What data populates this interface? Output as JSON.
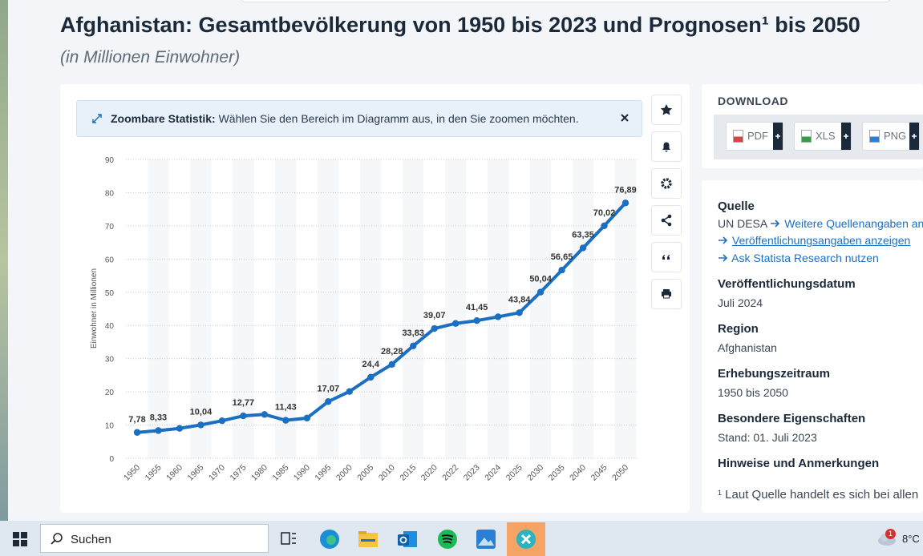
{
  "header": {
    "title": "Afghanistan: Gesamtbevölkerung von 1950 bis 2023 und Prognosen¹ bis 2050",
    "subtitle": "(in Millionen Einwohner)"
  },
  "banner": {
    "label": "Zoombare Statistik:",
    "text": "Wählen Sie den Bereich im Diagramm aus, in den Sie zoomen möchten."
  },
  "chart_data": {
    "type": "line",
    "categories": [
      "1950",
      "1955",
      "1960",
      "1965",
      "1970",
      "1975",
      "1980",
      "1985",
      "1990",
      "1995",
      "2000",
      "2005",
      "2010",
      "2015",
      "2020",
      "2022",
      "2023",
      "2024",
      "2025",
      "2030",
      "2035",
      "2040",
      "2045",
      "2050"
    ],
    "values": [
      7.78,
      8.33,
      9.0,
      10.04,
      11.3,
      12.77,
      13.2,
      11.43,
      12.1,
      17.07,
      20.1,
      24.4,
      28.28,
      33.83,
      39.07,
      40.6,
      41.45,
      42.6,
      43.84,
      50.04,
      56.65,
      63.35,
      70.02,
      76.89
    ],
    "value_labels": [
      "7,78",
      "8,33",
      null,
      "10,04",
      null,
      "12,77",
      null,
      "11,43",
      null,
      "17,07",
      null,
      "24,4",
      "28,28",
      "33,83",
      "39,07",
      null,
      "41,45",
      null,
      "43,84",
      "50,04",
      "56,65",
      "63,35",
      "70,02",
      "76,89"
    ],
    "color": "#1b6fc2",
    "ylabel": "Einwohner in Millionen",
    "ylim": [
      0,
      90
    ],
    "yticks": [
      0,
      10,
      20,
      30,
      40,
      50,
      60,
      70,
      80,
      90
    ],
    "grid": true
  },
  "download": {
    "title": "DOWNLOAD",
    "buttons": [
      "PDF",
      "XLS",
      "PNG"
    ]
  },
  "source": {
    "heading": "Quelle",
    "name": "UN DESA",
    "links": [
      "Weitere Quellenangaben anz",
      "Veröffentlichungsangaben anzeigen",
      "Ask Statista Research nutzen"
    ]
  },
  "details": [
    {
      "heading": "Veröffentlichungsdatum",
      "text": "Juli 2024"
    },
    {
      "heading": "Region",
      "text": "Afghanistan"
    },
    {
      "heading": "Erhebungszeitraum",
      "text": "1950 bis 2050"
    },
    {
      "heading": "Besondere Eigenschaften",
      "text": "Stand: 01. Juli 2023"
    }
  ],
  "notes": {
    "heading": "Hinweise und Anmerkungen",
    "text": "¹ Laut Quelle handelt es sich bei allen"
  },
  "taskbar": {
    "search": "Suchen",
    "temperature": "8°C",
    "badge": "1"
  }
}
